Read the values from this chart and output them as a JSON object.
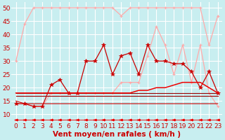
{
  "xlabel": "Vent moyen/en rafales ( km/h )",
  "bg_color": "#c8eef0",
  "grid_color": "#ffffff",
  "xlim": [
    -0.5,
    23.5
  ],
  "ylim": [
    7,
    52
  ],
  "yticks": [
    10,
    15,
    20,
    25,
    30,
    35,
    40,
    45,
    50
  ],
  "xticks": [
    0,
    1,
    2,
    3,
    4,
    5,
    6,
    7,
    8,
    9,
    10,
    11,
    12,
    13,
    14,
    15,
    16,
    17,
    18,
    19,
    20,
    21,
    22,
    23
  ],
  "hours": [
    0,
    1,
    2,
    3,
    4,
    5,
    6,
    7,
    8,
    9,
    10,
    11,
    12,
    13,
    14,
    15,
    16,
    17,
    18,
    19,
    20,
    21,
    22,
    23
  ],
  "color_light_pink": "#ffaaaa",
  "color_red": "#ee0000",
  "color_dark_red": "#cc0000",
  "color_brown_red": "#990000",
  "xlabel_color": "#cc0000",
  "tick_color": "#cc0000",
  "xlabel_fontsize": 7.5,
  "tick_fontsize": 6.5,
  "gust_top_y": [
    30,
    44,
    50,
    50,
    50,
    50,
    50,
    50,
    50,
    50,
    50,
    50,
    47,
    50,
    50,
    50,
    50,
    50,
    50,
    50,
    50,
    50,
    36,
    47
  ],
  "pink_mid_y": [
    14,
    14,
    13,
    13,
    18,
    18,
    18,
    18,
    18,
    18,
    18,
    18,
    22,
    22,
    22,
    32,
    43,
    36,
    25,
    36,
    22,
    36,
    18,
    13
  ],
  "red_peak_y": [
    14,
    14,
    13,
    13,
    21,
    23,
    18,
    18,
    30,
    30,
    36,
    25,
    32,
    33,
    25,
    36,
    30,
    30,
    29,
    29,
    26,
    20,
    26,
    18
  ],
  "avg_line_y": [
    18,
    18,
    18,
    18,
    18,
    18,
    18,
    18,
    18,
    18,
    18,
    18,
    18,
    18,
    19,
    19,
    20,
    20,
    21,
    22,
    22,
    22,
    20,
    18
  ],
  "flat1_y": [
    18,
    18,
    18,
    18,
    18,
    18,
    18,
    18,
    18,
    18,
    18,
    18,
    18,
    18,
    18,
    18,
    18,
    18,
    18,
    18,
    18,
    18,
    18,
    18
  ],
  "flat2_y": [
    17,
    17,
    17,
    17,
    17,
    17,
    17,
    17,
    17,
    17,
    17,
    17,
    17,
    17,
    17,
    17,
    17,
    17,
    17,
    17,
    17,
    17,
    17,
    17
  ],
  "low_line_y": [
    15,
    14,
    14,
    14,
    14,
    14,
    14,
    14,
    14,
    14,
    14,
    14,
    14,
    14,
    14,
    14,
    14,
    14,
    14,
    14,
    14,
    14,
    14,
    14
  ],
  "bottom_y": [
    8,
    8,
    8,
    8,
    8,
    8,
    8,
    8,
    8,
    8,
    8,
    8,
    8,
    8,
    8,
    8,
    8,
    8,
    8,
    8,
    8,
    8,
    8,
    8
  ]
}
